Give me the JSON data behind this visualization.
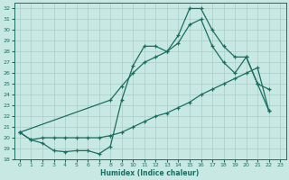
{
  "xlabel": "Humidex (Indice chaleur)",
  "xlim": [
    -0.5,
    23.5
  ],
  "ylim": [
    18,
    32.5
  ],
  "yticks": [
    18,
    19,
    20,
    21,
    22,
    23,
    24,
    25,
    26,
    27,
    28,
    29,
    30,
    31,
    32
  ],
  "xticks": [
    0,
    1,
    2,
    3,
    4,
    5,
    6,
    7,
    8,
    9,
    10,
    11,
    12,
    13,
    14,
    15,
    16,
    17,
    18,
    19,
    20,
    21,
    22,
    23
  ],
  "bg_color": "#c8e8e4",
  "grid_color": "#a8ccc8",
  "line_color": "#1a6e60",
  "curve1_x": [
    0,
    1,
    2,
    3,
    4,
    5,
    6,
    7,
    8,
    9,
    10,
    11,
    12,
    13,
    14,
    15,
    16,
    17,
    18,
    19,
    20,
    21,
    22
  ],
  "curve1_y": [
    20.5,
    19.8,
    19.5,
    18.8,
    18.7,
    18.8,
    18.8,
    18.5,
    19.2,
    23.5,
    26.7,
    28.5,
    28.5,
    28.0,
    29.5,
    32.0,
    32.0,
    30.0,
    28.5,
    27.5,
    27.5,
    25.0,
    24.5
  ],
  "curve2_x": [
    0,
    8,
    9,
    10,
    11,
    12,
    13,
    14,
    15,
    16,
    17,
    18,
    19,
    20,
    21,
    22
  ],
  "curve2_y": [
    20.5,
    23.5,
    24.8,
    26.0,
    27.0,
    27.5,
    28.0,
    28.8,
    30.5,
    31.0,
    28.5,
    27.0,
    26.0,
    27.5,
    25.0,
    22.5
  ],
  "curve3_x": [
    0,
    1,
    2,
    3,
    4,
    5,
    6,
    7,
    8,
    9,
    10,
    11,
    12,
    13,
    14,
    15,
    16,
    17,
    18,
    19,
    20,
    21,
    22
  ],
  "curve3_y": [
    20.5,
    19.8,
    20.0,
    20.0,
    20.0,
    20.0,
    20.0,
    20.0,
    20.2,
    20.5,
    21.0,
    21.5,
    22.0,
    22.3,
    22.8,
    23.3,
    24.0,
    24.5,
    25.0,
    25.5,
    26.0,
    26.5,
    22.5
  ]
}
